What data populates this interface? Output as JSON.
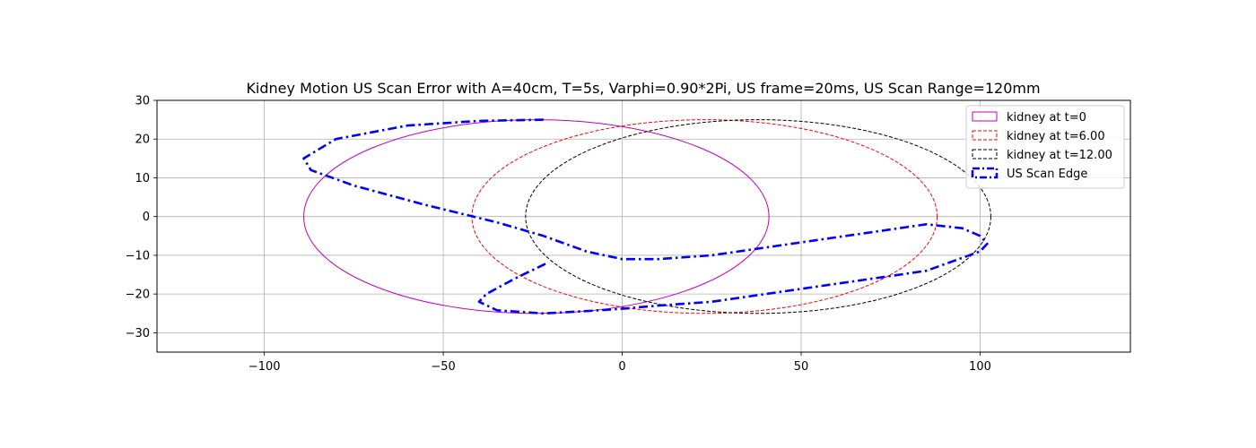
{
  "chart_data": {
    "type": "line",
    "title": "Kidney Motion US Scan Error with A=40cm, T=5s, Varphi=0.90*2Pi, US frame=20ms, US Scan Range=120mm",
    "xlabel": "",
    "ylabel": "",
    "xlim": [
      -130,
      142
    ],
    "ylim": [
      -35,
      30
    ],
    "x_ticks": [
      -100,
      -50,
      0,
      50,
      100
    ],
    "y_ticks": [
      -30,
      -20,
      -10,
      0,
      10,
      20,
      30
    ],
    "x_tick_labels": [
      "−100",
      "−50",
      "0",
      "50",
      "100"
    ],
    "y_tick_labels": [
      "−30",
      "−20",
      "−10",
      "0",
      "10",
      "20",
      "30"
    ],
    "grid": true,
    "legend_position": "top-right",
    "ellipses": [
      {
        "name": "kidney at t=0",
        "cx": -24,
        "cy": 0,
        "rx": 65,
        "ry": 25,
        "color": "#bf00bf",
        "style": "solid"
      },
      {
        "name": "kidney at t=6.00",
        "cx": 23,
        "cy": 0,
        "rx": 65,
        "ry": 25,
        "color": "#ff0000",
        "style": "dashed"
      },
      {
        "name": "kidney at t=12.00",
        "cx": 38,
        "cy": 0,
        "rx": 65,
        "ry": 25,
        "color": "#000000",
        "style": "dashed"
      }
    ],
    "scan_edge": {
      "name": "US Scan Edge",
      "color": "#0000ff",
      "style": "dashdot",
      "x": [
        -22,
        -40,
        -60,
        -80,
        -89,
        -87,
        -75,
        -55,
        -35,
        -22,
        -10,
        0,
        10,
        25,
        40,
        55,
        70,
        85,
        95,
        100,
        102,
        100,
        85,
        70,
        55,
        40,
        25,
        10,
        0,
        -10,
        -22,
        -35,
        -40,
        -38,
        -30,
        -21
      ],
      "y": [
        25,
        24.7,
        23.5,
        20,
        15,
        12,
        8,
        3,
        -1.5,
        -5,
        -9,
        -11,
        -11,
        -10,
        -8,
        -6,
        -4,
        -2,
        -3,
        -5,
        -7,
        -9,
        -14,
        -16,
        -18,
        -20,
        -22,
        -23,
        -23.8,
        -24.4,
        -25,
        -24.2,
        -22,
        -20,
        -16,
        -12
      ]
    }
  }
}
